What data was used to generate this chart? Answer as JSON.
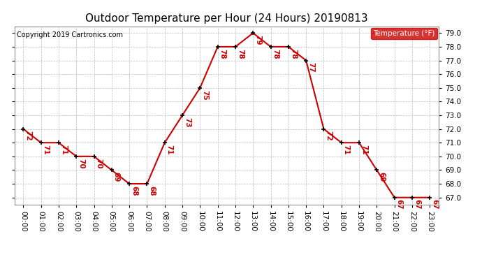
{
  "title": "Outdoor Temperature per Hour (24 Hours) 20190813",
  "copyright_text": "Copyright 2019 Cartronics.com",
  "legend_label": "Temperature (°F)",
  "hours": [
    "00:00",
    "01:00",
    "02:00",
    "03:00",
    "04:00",
    "05:00",
    "06:00",
    "07:00",
    "08:00",
    "09:00",
    "10:00",
    "11:00",
    "12:00",
    "13:00",
    "14:00",
    "15:00",
    "16:00",
    "17:00",
    "18:00",
    "19:00",
    "20:00",
    "21:00",
    "22:00",
    "23:00"
  ],
  "temperatures": [
    72,
    71,
    71,
    70,
    70,
    69,
    68,
    68,
    71,
    73,
    75,
    78,
    78,
    79,
    78,
    78,
    77,
    72,
    71,
    71,
    69,
    67,
    67,
    67
  ],
  "line_color": "#cc0000",
  "marker_color": "#000000",
  "label_color": "#cc0000",
  "background_color": "#ffffff",
  "grid_color": "#bbbbbb",
  "ylim_min": 67.0,
  "ylim_max": 79.0,
  "ytick_step": 1.0,
  "title_fontsize": 11,
  "copyright_fontsize": 7,
  "legend_bg_color": "#cc0000",
  "legend_text_color": "#ffffff",
  "label_fontsize": 7.5,
  "tick_fontsize": 7.5
}
